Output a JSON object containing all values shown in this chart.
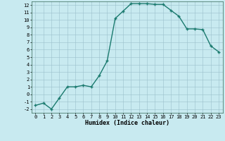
{
  "x": [
    0,
    1,
    2,
    3,
    4,
    5,
    6,
    7,
    8,
    9,
    10,
    11,
    12,
    13,
    14,
    15,
    16,
    17,
    18,
    19,
    20,
    21,
    22,
    23
  ],
  "y": [
    -1.5,
    -1.2,
    -2.0,
    -0.5,
    1.0,
    1.0,
    1.2,
    1.0,
    2.5,
    4.5,
    10.2,
    11.2,
    12.2,
    12.2,
    12.2,
    12.1,
    12.1,
    11.3,
    10.5,
    8.8,
    8.8,
    8.7,
    6.5,
    5.7
  ],
  "line_color": "#1a7a6e",
  "marker": "+",
  "marker_size": 3.5,
  "marker_lw": 1.0,
  "line_width": 1.0,
  "bg_color": "#c8eaf0",
  "grid_color": "#9bbfcc",
  "grid_major_color": "#8ab0be",
  "xlabel": "Humidex (Indice chaleur)",
  "ylim": [
    -2.5,
    12.5
  ],
  "xlim": [
    -0.5,
    23.5
  ],
  "yticks": [
    -2,
    -1,
    0,
    1,
    2,
    3,
    4,
    5,
    6,
    7,
    8,
    9,
    10,
    11,
    12
  ],
  "xticks": [
    0,
    1,
    2,
    3,
    4,
    5,
    6,
    7,
    8,
    9,
    10,
    11,
    12,
    13,
    14,
    15,
    16,
    17,
    18,
    19,
    20,
    21,
    22,
    23
  ],
  "tick_fontsize": 5.0,
  "xlabel_fontsize": 6.0
}
